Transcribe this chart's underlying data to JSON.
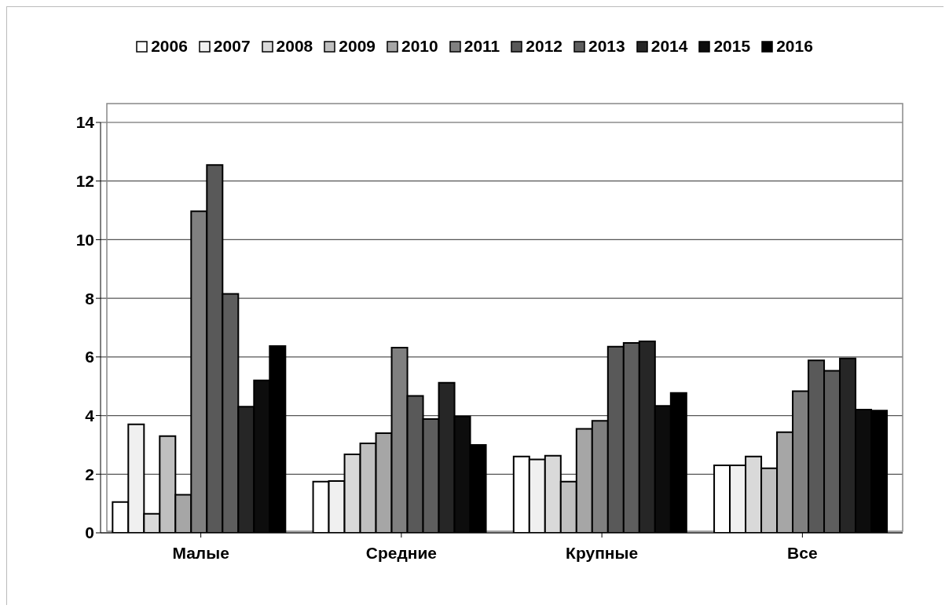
{
  "chart_data": {
    "type": "bar",
    "categories": [
      "Малые",
      "Средние",
      "Крупные",
      "Все"
    ],
    "series": [
      {
        "name": "2006",
        "color": "#ffffff",
        "values": [
          1.05,
          1.75,
          2.6,
          2.3
        ]
      },
      {
        "name": "2007",
        "color": "#f0f0f0",
        "values": [
          3.7,
          1.77,
          2.5,
          2.3
        ]
      },
      {
        "name": "2008",
        "color": "#d9d9d9",
        "values": [
          0.65,
          2.68,
          2.63,
          2.6
        ]
      },
      {
        "name": "2009",
        "color": "#bfbfbf",
        "values": [
          3.3,
          3.05,
          1.75,
          2.2
        ]
      },
      {
        "name": "2010",
        "color": "#a6a6a6",
        "values": [
          1.3,
          3.4,
          3.55,
          3.43
        ]
      },
      {
        "name": "2011",
        "color": "#808080",
        "values": [
          10.97,
          6.32,
          3.82,
          4.83
        ]
      },
      {
        "name": "2012",
        "color": "#595959",
        "values": [
          12.55,
          4.67,
          6.35,
          5.88
        ]
      },
      {
        "name": "2013",
        "color": "#5e5e5e",
        "values": [
          8.15,
          3.88,
          6.48,
          5.53
        ]
      },
      {
        "name": "2014",
        "color": "#262626",
        "values": [
          4.3,
          5.12,
          6.53,
          5.95
        ]
      },
      {
        "name": "2015",
        "color": "#0d0d0d",
        "values": [
          5.2,
          3.97,
          4.33,
          4.2
        ]
      },
      {
        "name": "2016",
        "color": "#000000",
        "values": [
          6.37,
          3.0,
          4.77,
          4.17
        ]
      }
    ],
    "ylim": [
      0,
      14
    ],
    "yticks": [
      0,
      2,
      4,
      6,
      8,
      10,
      12,
      14
    ],
    "grid": "y",
    "legend": "top"
  }
}
